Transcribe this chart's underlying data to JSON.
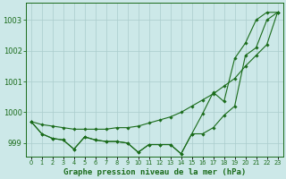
{
  "background_color": "#cce8e8",
  "grid_color": "#aacccc",
  "line_color": "#1a6b1a",
  "title": "Graphe pression niveau de la mer (hPa)",
  "title_fontsize": 6.5,
  "ylabel_ticks": [
    999,
    1000,
    1001,
    1002,
    1003
  ],
  "ytick_fontsize": 6.0,
  "xtick_fontsize": 4.8,
  "xlim_min": -0.5,
  "xlim_max": 23.5,
  "ylim_min": 998.55,
  "ylim_max": 1003.55,
  "x": [
    0,
    1,
    2,
    3,
    4,
    5,
    6,
    7,
    8,
    9,
    10,
    11,
    12,
    13,
    14,
    15,
    16,
    17,
    18,
    19,
    20,
    21,
    22,
    23
  ],
  "line1_wavy": [
    999.7,
    999.3,
    999.15,
    999.1,
    998.8,
    999.2,
    999.1,
    999.05,
    999.05,
    999.0,
    998.7,
    998.95,
    998.95,
    998.95,
    998.65,
    999.3,
    999.3,
    999.5,
    999.9,
    1000.2,
    1001.85,
    1002.1,
    1003.0,
    1003.25
  ],
  "line2_straight": [
    999.7,
    999.6,
    999.55,
    999.5,
    999.45,
    999.45,
    999.45,
    999.45,
    999.5,
    999.5,
    999.55,
    999.65,
    999.75,
    999.85,
    1000.0,
    1000.2,
    1000.4,
    1000.6,
    1000.85,
    1001.1,
    1001.5,
    1001.85,
    1002.2,
    1003.25
  ],
  "line3_mid": [
    999.7,
    999.3,
    999.15,
    999.1,
    998.8,
    999.2,
    999.1,
    999.05,
    999.05,
    999.0,
    998.7,
    998.95,
    998.95,
    998.95,
    998.65,
    999.3,
    999.95,
    1000.65,
    1000.35,
    1001.75,
    1002.25,
    1003.0,
    1003.25,
    1003.25
  ]
}
